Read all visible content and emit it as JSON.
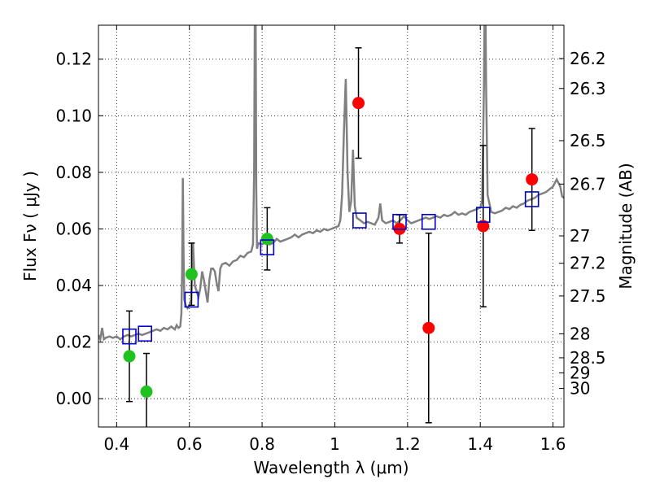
{
  "chart_data": {
    "type": "scatter",
    "xlabel": "Wavelength  λ (μm)",
    "ylabel": "Flux  Fν  ( μJy )",
    "ylabel_right": "Magnitude (AB)",
    "xlim": [
      0.35,
      1.63
    ],
    "ylim": [
      -0.01,
      0.132
    ],
    "x_ticks": [
      0.4,
      0.6,
      0.8,
      1.0,
      1.2,
      1.4,
      1.6
    ],
    "x_tick_labels": [
      "0.4",
      "0.6",
      "0.8",
      "1",
      "1.2",
      "1.4",
      "1.6"
    ],
    "y_ticks": [
      0.0,
      0.02,
      0.04,
      0.06,
      0.08,
      0.1,
      0.12
    ],
    "y_tick_labels": [
      "0.00",
      "0.02",
      "0.04",
      "0.06",
      "0.08",
      "0.10",
      "0.12"
    ],
    "mag_ticks": [
      {
        "mag": 26.2,
        "label": "26.2"
      },
      {
        "mag": 26.3,
        "label": "26.3"
      },
      {
        "mag": 26.5,
        "label": "26.5"
      },
      {
        "mag": 26.7,
        "label": "26.7"
      },
      {
        "mag": 27.0,
        "label": "27"
      },
      {
        "mag": 27.2,
        "label": "27.2"
      },
      {
        "mag": 27.5,
        "label": "27.5"
      },
      {
        "mag": 28.0,
        "label": "28"
      },
      {
        "mag": 28.5,
        "label": "28.5"
      },
      {
        "mag": 29.0,
        "label": "29"
      },
      {
        "mag": 30.0,
        "label": "30"
      }
    ],
    "grid": true,
    "colors": {
      "spectrum": "#808080",
      "green": "#1fc21f",
      "red": "#ff0000",
      "model": "#0000cc",
      "errorbar": "#000000"
    },
    "spectrum": {
      "name": "SED model spectrum",
      "points": [
        [
          0.35,
          0.0225
        ],
        [
          0.355,
          0.021
        ],
        [
          0.36,
          0.025
        ],
        [
          0.365,
          0.021
        ],
        [
          0.37,
          0.0215
        ],
        [
          0.38,
          0.022
        ],
        [
          0.39,
          0.0215
        ],
        [
          0.4,
          0.022
        ],
        [
          0.41,
          0.021
        ],
        [
          0.42,
          0.022
        ],
        [
          0.43,
          0.0225
        ],
        [
          0.44,
          0.022
        ],
        [
          0.45,
          0.0225
        ],
        [
          0.46,
          0.023
        ],
        [
          0.47,
          0.0225
        ],
        [
          0.48,
          0.023
        ],
        [
          0.49,
          0.0235
        ],
        [
          0.5,
          0.024
        ],
        [
          0.51,
          0.0245
        ],
        [
          0.52,
          0.024
        ],
        [
          0.53,
          0.025
        ],
        [
          0.54,
          0.0245
        ],
        [
          0.55,
          0.0255
        ],
        [
          0.56,
          0.0245
        ],
        [
          0.565,
          0.026
        ],
        [
          0.57,
          0.025
        ],
        [
          0.575,
          0.0255
        ],
        [
          0.578,
          0.03
        ],
        [
          0.58,
          0.045
        ],
        [
          0.582,
          0.078
        ],
        [
          0.584,
          0.05
        ],
        [
          0.586,
          0.035
        ],
        [
          0.59,
          0.033
        ],
        [
          0.595,
          0.032
        ],
        [
          0.6,
          0.033
        ],
        [
          0.605,
          0.035
        ],
        [
          0.61,
          0.055
        ],
        [
          0.615,
          0.04
        ],
        [
          0.62,
          0.038
        ],
        [
          0.625,
          0.036
        ],
        [
          0.63,
          0.039
        ],
        [
          0.635,
          0.045
        ],
        [
          0.64,
          0.042
        ],
        [
          0.645,
          0.038
        ],
        [
          0.65,
          0.034
        ],
        [
          0.655,
          0.042
        ],
        [
          0.66,
          0.046
        ],
        [
          0.665,
          0.046
        ],
        [
          0.67,
          0.045
        ],
        [
          0.675,
          0.041
        ],
        [
          0.68,
          0.038
        ],
        [
          0.685,
          0.046
        ],
        [
          0.69,
          0.0475
        ],
        [
          0.7,
          0.048
        ],
        [
          0.71,
          0.047
        ],
        [
          0.72,
          0.0485
        ],
        [
          0.73,
          0.049
        ],
        [
          0.74,
          0.0505
        ],
        [
          0.75,
          0.05
        ],
        [
          0.76,
          0.0515
        ],
        [
          0.77,
          0.052
        ],
        [
          0.775,
          0.0545
        ],
        [
          0.778,
          0.08
        ],
        [
          0.78,
          0.14
        ],
        [
          0.782,
          0.14
        ],
        [
          0.784,
          0.075
        ],
        [
          0.786,
          0.053
        ],
        [
          0.79,
          0.055
        ],
        [
          0.8,
          0.0545
        ],
        [
          0.81,
          0.0555
        ],
        [
          0.82,
          0.0545
        ],
        [
          0.83,
          0.055
        ],
        [
          0.84,
          0.0565
        ],
        [
          0.85,
          0.0555
        ],
        [
          0.86,
          0.056
        ],
        [
          0.87,
          0.0565
        ],
        [
          0.88,
          0.057
        ],
        [
          0.89,
          0.058
        ],
        [
          0.9,
          0.057
        ],
        [
          0.91,
          0.058
        ],
        [
          0.92,
          0.0585
        ],
        [
          0.93,
          0.059
        ],
        [
          0.94,
          0.0585
        ],
        [
          0.95,
          0.0595
        ],
        [
          0.96,
          0.059
        ],
        [
          0.97,
          0.06
        ],
        [
          0.98,
          0.0595
        ],
        [
          0.99,
          0.06
        ],
        [
          1.0,
          0.0605
        ],
        [
          1.01,
          0.061
        ],
        [
          1.015,
          0.063
        ],
        [
          1.02,
          0.072
        ],
        [
          1.025,
          0.094
        ],
        [
          1.03,
          0.113
        ],
        [
          1.035,
          0.08
        ],
        [
          1.04,
          0.066
        ],
        [
          1.045,
          0.07
        ],
        [
          1.05,
          0.088
        ],
        [
          1.055,
          0.068
        ],
        [
          1.06,
          0.064
        ],
        [
          1.07,
          0.063
        ],
        [
          1.08,
          0.062
        ],
        [
          1.09,
          0.0625
        ],
        [
          1.1,
          0.062
        ],
        [
          1.11,
          0.0615
        ],
        [
          1.12,
          0.064
        ],
        [
          1.125,
          0.069
        ],
        [
          1.13,
          0.063
        ],
        [
          1.14,
          0.062
        ],
        [
          1.15,
          0.0625
        ],
        [
          1.16,
          0.063
        ],
        [
          1.17,
          0.062
        ],
        [
          1.18,
          0.063
        ],
        [
          1.19,
          0.0645
        ],
        [
          1.2,
          0.063
        ],
        [
          1.21,
          0.062
        ],
        [
          1.22,
          0.0625
        ],
        [
          1.23,
          0.063
        ],
        [
          1.24,
          0.0635
        ],
        [
          1.25,
          0.064
        ],
        [
          1.26,
          0.0635
        ],
        [
          1.27,
          0.064
        ],
        [
          1.28,
          0.0645
        ],
        [
          1.29,
          0.064
        ],
        [
          1.3,
          0.065
        ],
        [
          1.31,
          0.0645
        ],
        [
          1.32,
          0.065
        ],
        [
          1.33,
          0.066
        ],
        [
          1.34,
          0.065
        ],
        [
          1.35,
          0.0655
        ],
        [
          1.36,
          0.065
        ],
        [
          1.37,
          0.066
        ],
        [
          1.38,
          0.0665
        ],
        [
          1.39,
          0.067
        ],
        [
          1.4,
          0.0675
        ],
        [
          1.405,
          0.07
        ],
        [
          1.41,
          0.11
        ],
        [
          1.412,
          0.14
        ],
        [
          1.414,
          0.14
        ],
        [
          1.416,
          0.11
        ],
        [
          1.42,
          0.072
        ],
        [
          1.43,
          0.066
        ],
        [
          1.44,
          0.0655
        ],
        [
          1.45,
          0.066
        ],
        [
          1.46,
          0.0665
        ],
        [
          1.47,
          0.0675
        ],
        [
          1.48,
          0.067
        ],
        [
          1.49,
          0.068
        ],
        [
          1.5,
          0.0675
        ],
        [
          1.51,
          0.0685
        ],
        [
          1.52,
          0.069
        ],
        [
          1.53,
          0.07
        ],
        [
          1.54,
          0.0705
        ],
        [
          1.55,
          0.071
        ],
        [
          1.56,
          0.072
        ],
        [
          1.57,
          0.0725
        ],
        [
          1.58,
          0.073
        ],
        [
          1.59,
          0.074
        ],
        [
          1.6,
          0.075
        ],
        [
          1.61,
          0.0775
        ],
        [
          1.62,
          0.075
        ],
        [
          1.625,
          0.0715
        ],
        [
          1.63,
          0.071
        ]
      ]
    },
    "series": [
      {
        "name": "green",
        "points": [
          {
            "x": 0.435,
            "y": 0.015,
            "yerr": 0.016
          },
          {
            "x": 0.482,
            "y": 0.0025,
            "yerr": 0.0135
          },
          {
            "x": 0.606,
            "y": 0.044,
            "yerr": 0.011
          },
          {
            "x": 0.814,
            "y": 0.0565,
            "yerr": 0.011
          }
        ]
      },
      {
        "name": "red",
        "points": [
          {
            "x": 1.065,
            "y": 0.1045,
            "yerr": 0.0195
          },
          {
            "x": 1.178,
            "y": 0.06,
            "yerr": 0.005
          },
          {
            "x": 1.258,
            "y": 0.025,
            "yerr": 0.0335
          },
          {
            "x": 1.408,
            "y": 0.061,
            "yerr": 0.0285
          },
          {
            "x": 1.542,
            "y": 0.0775,
            "yerr": 0.018
          }
        ]
      },
      {
        "name": "model",
        "points": [
          {
            "x": 0.435,
            "y": 0.022
          },
          {
            "x": 0.478,
            "y": 0.023
          },
          {
            "x": 0.606,
            "y": 0.035
          },
          {
            "x": 0.814,
            "y": 0.0535
          },
          {
            "x": 1.068,
            "y": 0.063
          },
          {
            "x": 1.178,
            "y": 0.0625
          },
          {
            "x": 1.258,
            "y": 0.0625
          },
          {
            "x": 1.408,
            "y": 0.065
          },
          {
            "x": 1.542,
            "y": 0.0705
          }
        ]
      }
    ]
  }
}
